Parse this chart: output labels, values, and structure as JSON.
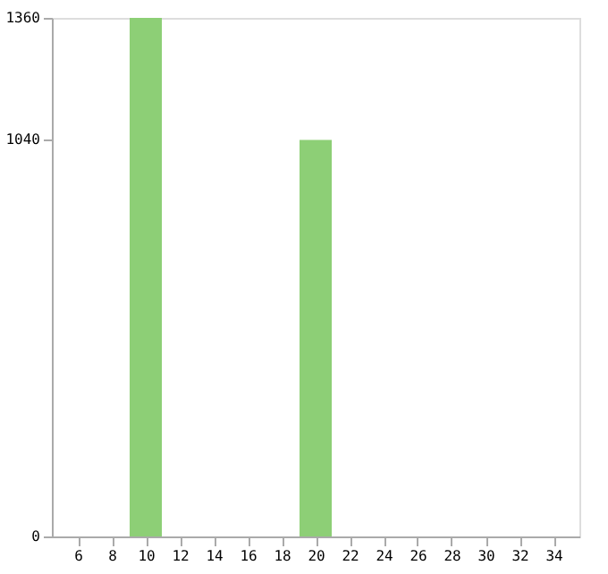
{
  "chart_data": {
    "type": "bar",
    "categories": [
      "6",
      "8",
      "10",
      "12",
      "14",
      "16",
      "18",
      "20",
      "22",
      "24",
      "26",
      "28",
      "30",
      "32",
      "34"
    ],
    "values": [
      0,
      0,
      1360,
      0,
      0,
      0,
      0,
      1040,
      0,
      0,
      0,
      0,
      0,
      0,
      0
    ],
    "color": "#8dcf76",
    "ylim": [
      0,
      1360
    ],
    "yticks": [
      0,
      1040,
      1360
    ],
    "grid": false
  }
}
